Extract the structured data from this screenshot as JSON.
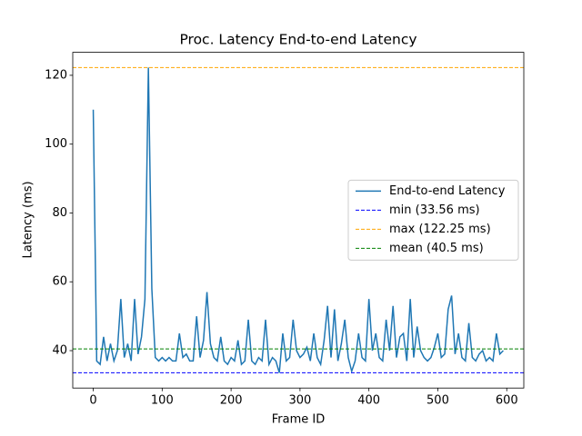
{
  "chart_data": {
    "type": "line",
    "title": "Proc. Latency End-to-end Latency",
    "xlabel": "Frame ID",
    "ylabel": "Latency (ms)",
    "x": [
      0,
      5,
      10,
      15,
      20,
      25,
      30,
      35,
      40,
      45,
      50,
      55,
      60,
      65,
      70,
      75,
      80,
      85,
      90,
      95,
      100,
      105,
      110,
      115,
      120,
      125,
      130,
      135,
      140,
      145,
      150,
      155,
      160,
      165,
      170,
      175,
      180,
      185,
      190,
      195,
      200,
      205,
      210,
      215,
      220,
      225,
      230,
      235,
      240,
      245,
      250,
      255,
      260,
      265,
      270,
      275,
      280,
      285,
      290,
      295,
      300,
      305,
      310,
      315,
      320,
      325,
      330,
      335,
      340,
      345,
      350,
      355,
      360,
      365,
      370,
      375,
      380,
      385,
      390,
      395,
      400,
      405,
      410,
      415,
      420,
      425,
      430,
      435,
      440,
      445,
      450,
      455,
      460,
      465,
      470,
      475,
      480,
      485,
      490,
      495,
      500,
      505,
      510,
      515,
      520,
      525,
      530,
      535,
      540,
      545,
      550,
      555,
      560,
      565,
      570,
      575,
      580,
      585,
      590,
      595
    ],
    "series": [
      {
        "name": "End-to-end Latency",
        "color": "#1f77b4",
        "values": [
          110,
          37,
          36,
          44,
          37,
          42,
          37,
          40,
          55,
          38,
          42,
          37,
          55,
          39,
          44,
          55,
          122.25,
          58,
          38,
          37,
          38,
          37,
          38,
          37,
          37,
          45,
          38,
          39,
          37,
          37,
          50,
          38,
          43,
          57,
          42,
          38,
          37,
          44,
          37,
          36,
          38,
          37,
          43,
          36,
          37,
          49,
          37,
          36,
          38,
          37,
          49,
          36,
          38,
          37,
          33.56,
          45,
          37,
          38,
          49,
          40,
          38,
          39,
          41,
          37,
          45,
          38,
          36,
          43,
          53,
          38,
          52,
          37,
          42,
          49,
          38,
          34,
          37,
          45,
          38,
          37,
          55,
          40,
          45,
          38,
          37,
          49,
          40,
          53,
          38,
          44,
          45,
          37,
          55,
          38,
          47,
          40,
          38,
          37,
          38,
          41,
          45,
          38,
          39,
          52,
          56,
          39,
          45,
          38,
          37,
          48,
          38,
          37,
          39,
          40,
          37,
          38,
          37,
          45,
          39,
          40
        ]
      }
    ],
    "hlines": [
      {
        "name": "min (33.56 ms)",
        "value": 33.56,
        "color": "#0000ff"
      },
      {
        "name": "max (122.25 ms)",
        "value": 122.25,
        "color": "#ffa500"
      },
      {
        "name": "mean (40.5 ms)",
        "value": 40.5,
        "color": "#008000"
      }
    ],
    "xlim": [
      -29.75,
      624.75
    ],
    "ylim": [
      29.13,
      126.68
    ],
    "xticks": [
      0,
      100,
      200,
      300,
      400,
      500,
      600
    ],
    "yticks": [
      40,
      60,
      80,
      100,
      120
    ],
    "grid": false,
    "legend": "center right"
  }
}
